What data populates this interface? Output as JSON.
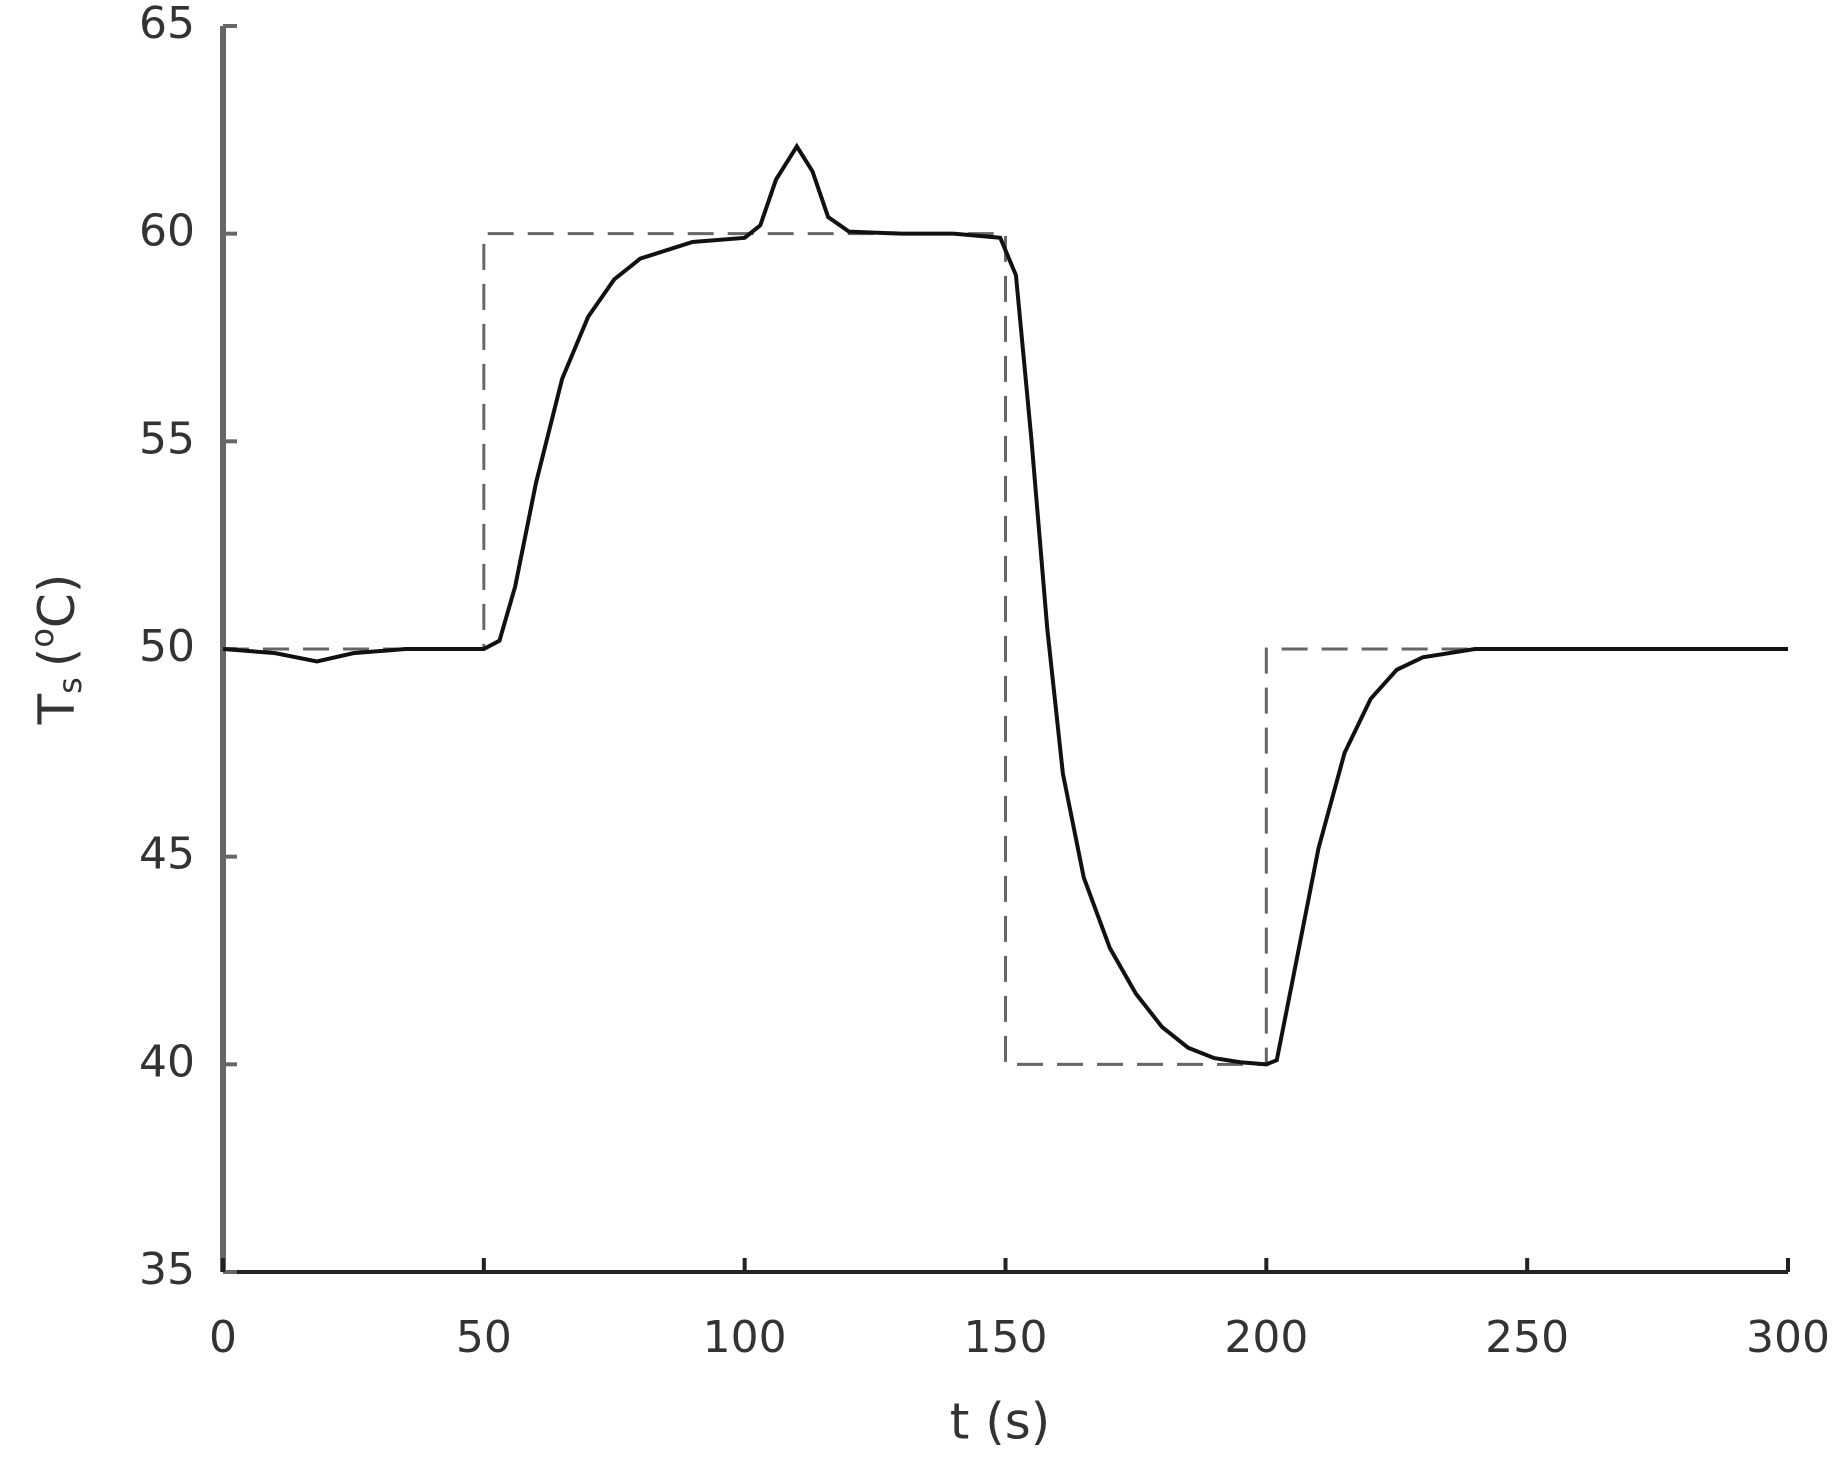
{
  "chart_data": {
    "type": "line",
    "xlabel": "t (s)",
    "ylabel": {
      "main": "T",
      "sub": "s",
      "open": "(",
      "sup": "o",
      "rest": "C)"
    },
    "xlim": [
      0,
      300
    ],
    "xticks": [
      0,
      50,
      100,
      150,
      200,
      250,
      300
    ],
    "ylim": [
      35,
      65
    ],
    "yticks": [
      35,
      40,
      45,
      50,
      55,
      60,
      65
    ],
    "series": [
      {
        "color": "#666666",
        "dash": true,
        "x": [
          0,
          50,
          50,
          150,
          150,
          200,
          200,
          300
        ],
        "values": [
          50,
          50,
          60,
          60,
          40,
          40,
          50,
          50
        ]
      },
      {
        "color": "#111111",
        "dash": false,
        "x": [
          0,
          10,
          18,
          25,
          35,
          50,
          53,
          56,
          60,
          65,
          70,
          75,
          80,
          90,
          100,
          103,
          106,
          110,
          113,
          116,
          120,
          130,
          140,
          149,
          152,
          155,
          158,
          161,
          165,
          170,
          175,
          180,
          185,
          190,
          195,
          200,
          202,
          205,
          210,
          215,
          220,
          225,
          230,
          240,
          250,
          300
        ],
        "values": [
          50,
          49.9,
          49.7,
          49.9,
          50,
          50,
          50.2,
          51.5,
          54,
          56.5,
          58,
          58.9,
          59.4,
          59.8,
          59.9,
          60.2,
          61.3,
          62.1,
          61.5,
          60.4,
          60.05,
          60,
          60,
          59.9,
          59,
          55,
          50.5,
          47,
          44.5,
          42.8,
          41.7,
          40.9,
          40.4,
          40.15,
          40.05,
          40,
          40.1,
          42,
          45.2,
          47.5,
          48.8,
          49.5,
          49.8,
          50,
          50,
          50
        ]
      }
    ]
  }
}
